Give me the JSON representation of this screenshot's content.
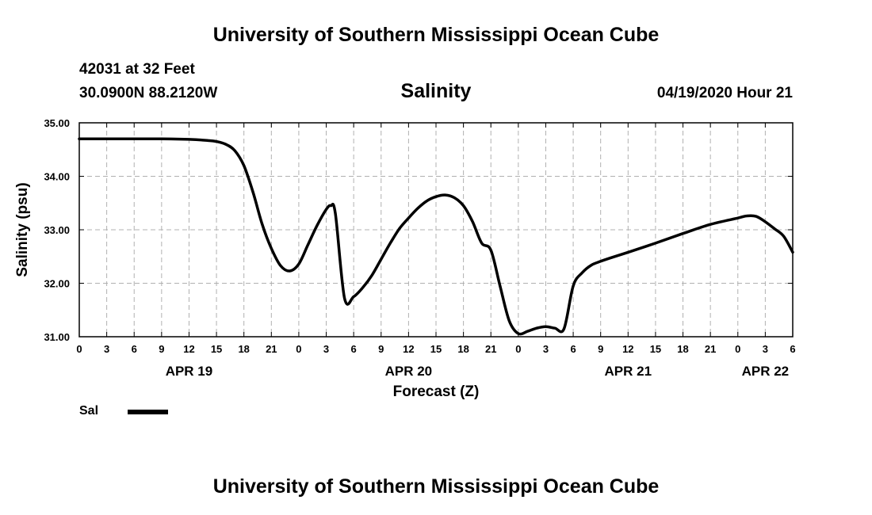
{
  "header": {
    "title": "University of Southern Mississippi Ocean Cube",
    "station": "42031 at 32 Feet",
    "coords": "30.0900N 88.2120W",
    "datetime": "04/19/2020 Hour 21"
  },
  "footer": {
    "title": "University of Southern Mississippi Ocean Cube"
  },
  "legend": {
    "label": "Sal"
  },
  "chart_data": {
    "type": "line",
    "title": "Salinity",
    "xlabel": "Forecast (Z)",
    "ylabel": "Salinity (psu)",
    "xlim": [
      0,
      78
    ],
    "ylim": [
      31.0,
      35.0
    ],
    "grid": true,
    "line_color": "#000000",
    "yticks": [
      {
        "value": 31.0,
        "label": "31.00"
      },
      {
        "value": 32.0,
        "label": "32.00"
      },
      {
        "value": 33.0,
        "label": "33.00"
      },
      {
        "value": 34.0,
        "label": "34.00"
      },
      {
        "value": 35.0,
        "label": "35.00"
      }
    ],
    "xticks": [
      {
        "hour": 0,
        "label": "0"
      },
      {
        "hour": 3,
        "label": "3"
      },
      {
        "hour": 6,
        "label": "6"
      },
      {
        "hour": 9,
        "label": "9"
      },
      {
        "hour": 12,
        "label": "12"
      },
      {
        "hour": 15,
        "label": "15"
      },
      {
        "hour": 18,
        "label": "18"
      },
      {
        "hour": 21,
        "label": "21"
      },
      {
        "hour": 24,
        "label": "0"
      },
      {
        "hour": 27,
        "label": "3"
      },
      {
        "hour": 30,
        "label": "6"
      },
      {
        "hour": 33,
        "label": "9"
      },
      {
        "hour": 36,
        "label": "12"
      },
      {
        "hour": 39,
        "label": "15"
      },
      {
        "hour": 42,
        "label": "18"
      },
      {
        "hour": 45,
        "label": "21"
      },
      {
        "hour": 48,
        "label": "0"
      },
      {
        "hour": 51,
        "label": "3"
      },
      {
        "hour": 54,
        "label": "6"
      },
      {
        "hour": 57,
        "label": "9"
      },
      {
        "hour": 60,
        "label": "12"
      },
      {
        "hour": 63,
        "label": "15"
      },
      {
        "hour": 66,
        "label": "18"
      },
      {
        "hour": 69,
        "label": "21"
      },
      {
        "hour": 72,
        "label": "0"
      },
      {
        "hour": 75,
        "label": "3"
      },
      {
        "hour": 78,
        "label": "6"
      }
    ],
    "date_labels": [
      {
        "hour": 12,
        "label": "APR 19"
      },
      {
        "hour": 36,
        "label": "APR 20"
      },
      {
        "hour": 60,
        "label": "APR 21"
      },
      {
        "hour": 75,
        "label": "APR 22"
      }
    ],
    "series": [
      {
        "name": "Sal",
        "x": [
          0,
          3,
          6,
          9,
          12,
          14,
          15,
          16,
          17,
          18,
          19,
          20,
          21,
          22,
          23,
          24,
          25,
          26,
          27,
          27.5,
          28,
          29,
          30,
          31,
          32,
          33,
          34,
          35,
          36,
          37,
          38,
          39,
          40,
          41,
          42,
          43,
          44,
          45,
          46,
          47,
          48,
          49,
          50,
          51,
          52,
          53,
          54,
          55,
          56,
          57,
          58,
          60,
          63,
          66,
          69,
          72,
          73,
          74,
          75,
          76,
          77,
          78
        ],
        "y": [
          34.7,
          34.7,
          34.7,
          34.7,
          34.69,
          34.67,
          34.65,
          34.6,
          34.48,
          34.2,
          33.7,
          33.1,
          32.65,
          32.33,
          32.23,
          32.36,
          32.72,
          33.08,
          33.38,
          33.45,
          33.3,
          31.72,
          31.75,
          31.92,
          32.15,
          32.45,
          32.75,
          33.02,
          33.22,
          33.4,
          33.54,
          33.62,
          33.65,
          33.6,
          33.45,
          33.15,
          32.75,
          32.62,
          31.95,
          31.3,
          31.06,
          31.1,
          31.16,
          31.19,
          31.16,
          31.15,
          31.95,
          32.2,
          32.34,
          32.41,
          32.47,
          32.58,
          32.75,
          32.93,
          33.1,
          33.22,
          33.26,
          33.25,
          33.15,
          33.02,
          32.88,
          32.58
        ]
      }
    ]
  }
}
